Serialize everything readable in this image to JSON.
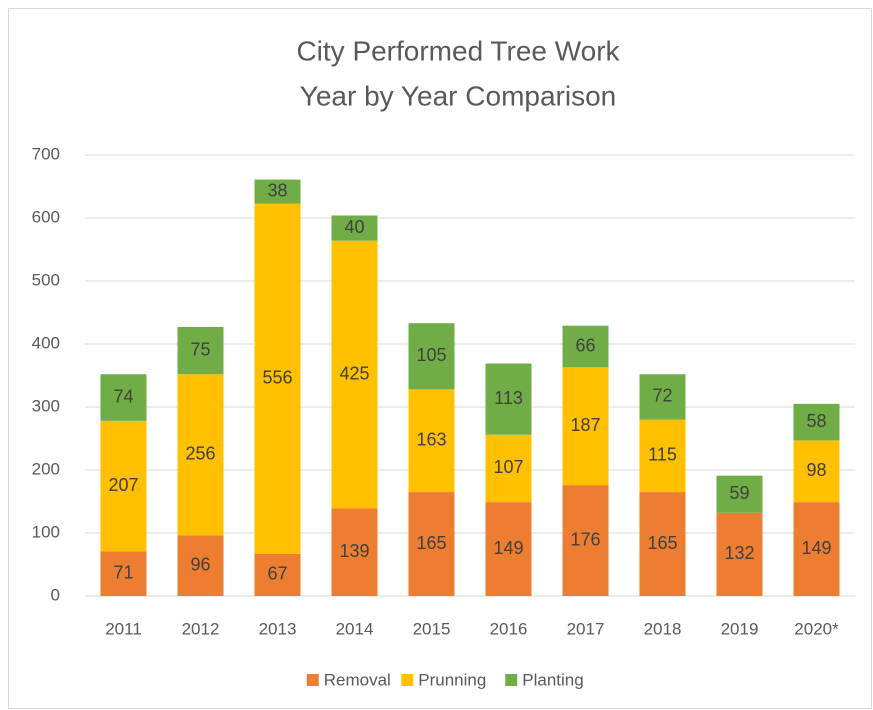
{
  "chart_data": {
    "type": "stacked_bar",
    "title": [
      "City Performed Tree Work",
      "Year by Year Comparison"
    ],
    "categories": [
      "2011",
      "2012",
      "2013",
      "2014",
      "2015",
      "2016",
      "2017",
      "2018",
      "2019",
      "2020*"
    ],
    "series": [
      {
        "name": "Removal",
        "color": "#ed7d31",
        "values": [
          71,
          96,
          67,
          139,
          165,
          149,
          176,
          165,
          132,
          149
        ]
      },
      {
        "name": "Prunning",
        "color": "#ffc000",
        "values": [
          207,
          256,
          556,
          425,
          163,
          107,
          187,
          115,
          null,
          98
        ]
      },
      {
        "name": "Planting",
        "color": "#70ad47",
        "values": [
          74,
          75,
          38,
          40,
          105,
          113,
          66,
          72,
          59,
          58
        ]
      }
    ],
    "ylim": [
      0,
      700
    ],
    "yticks": [
      0,
      100,
      200,
      300,
      400,
      500,
      600,
      700
    ],
    "grid": true,
    "legend": "bottom"
  }
}
